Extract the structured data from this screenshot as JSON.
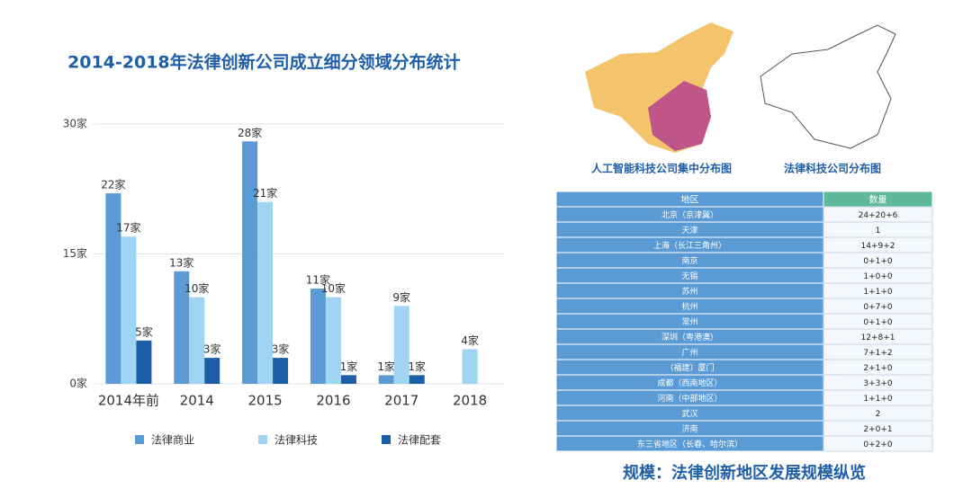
{
  "chart_data": {
    "type": "bar",
    "title": "2014-2018年法律创新公司成立细分领域分布统计",
    "categories": [
      "2014年前",
      "2014",
      "2015",
      "2016",
      "2017",
      "2018"
    ],
    "series": [
      {
        "name": "法律商业",
        "color": "#5b9bd5",
        "values": [
          22,
          13,
          28,
          11,
          1,
          null
        ],
        "value_labels": [
          "22家",
          "13家",
          "28家",
          "11家",
          "1家",
          null
        ]
      },
      {
        "name": "法律科技",
        "color": "#9fd4f2",
        "values": [
          17,
          10,
          21,
          10,
          9,
          4
        ],
        "value_labels": [
          "17家",
          "10家",
          "21家",
          "10家",
          "9家",
          "4家"
        ]
      },
      {
        "name": "法律配套",
        "color": "#1c5fa8",
        "values": [
          5,
          3,
          3,
          1,
          1,
          null
        ],
        "value_labels": [
          "5家",
          "3家",
          "3家",
          "1家",
          "1家",
          null
        ]
      }
    ],
    "ylim": [
      0,
      30
    ],
    "yticks": [
      {
        "value": 0,
        "label": "0家"
      },
      {
        "value": 15,
        "label": "15家"
      },
      {
        "value": 30,
        "label": "30家"
      }
    ],
    "grid": true
  },
  "maps": {
    "left_caption": "人工智能科技公司集中分布图",
    "right_caption": "法律科技公司分布图"
  },
  "table": {
    "header": [
      "地区",
      "数量"
    ],
    "rows": [
      [
        "北京（京津冀）",
        "24+20+6"
      ],
      [
        "天津",
        "1"
      ],
      [
        "上海（长江三角州）",
        "14+9+2"
      ],
      [
        "南京",
        "0+1+0"
      ],
      [
        "无锡",
        "1+0+0"
      ],
      [
        "苏州",
        "1+1+0"
      ],
      [
        "杭州",
        "0+7+0"
      ],
      [
        "常州",
        "0+1+0"
      ],
      [
        "深圳（粤港澳）",
        "12+8+1"
      ],
      [
        "广州",
        "7+1+2"
      ],
      [
        "（福建）厦门",
        "2+1+0"
      ],
      [
        "成都（西南地区）",
        "3+3+0"
      ],
      [
        "河南（中部地区）",
        "1+1+0"
      ],
      [
        "武汉",
        "2"
      ],
      [
        "济南",
        "2+0+1"
      ],
      [
        "东三省地区（长春、哈尔滨）",
        "0+2+0"
      ]
    ]
  },
  "footer": {
    "title": "规模：法律创新地区发展规模纵览"
  }
}
